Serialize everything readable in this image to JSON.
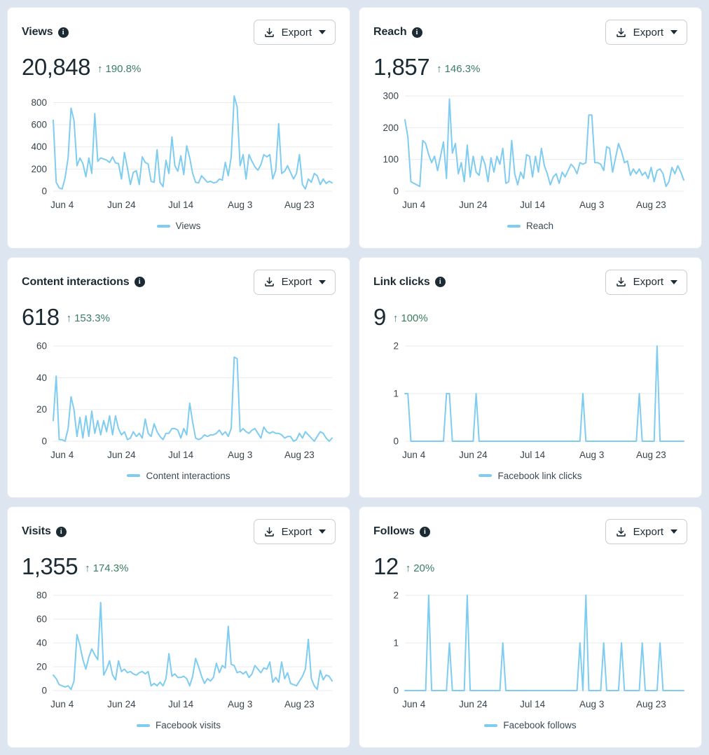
{
  "export": {
    "label": "Export"
  },
  "icons": {
    "info_glyph": "i",
    "up_arrow_glyph": "↑"
  },
  "colors": {
    "page_bg": "#dde5f1",
    "card_bg": "#ffffff",
    "line": "#7fccf1",
    "grid": "#e7e9ec",
    "title_text": "#1c2b33",
    "value_text": "#1c2b33",
    "delta_green": "#3a7d62",
    "axis_text": "#39444d",
    "legend_text": "#3c4a54"
  },
  "cards": [
    {
      "title": "Views",
      "value": "20,848",
      "delta": "190.8%",
      "delta_arrow": "↑",
      "legend": "Views"
    },
    {
      "title": "Reach",
      "value": "1,857",
      "delta": "146.3%",
      "delta_arrow": "↑",
      "legend": "Reach"
    },
    {
      "title": "Content interactions",
      "value": "618",
      "delta": "153.3%",
      "delta_arrow": "↑",
      "legend": "Content interactions"
    },
    {
      "title": "Link clicks",
      "value": "9",
      "delta": "100%",
      "delta_arrow": "↑",
      "legend": "Facebook link clicks"
    },
    {
      "title": "Visits",
      "value": "1,355",
      "delta": "174.3%",
      "delta_arrow": "↑",
      "legend": "Facebook visits"
    },
    {
      "title": "Follows",
      "value": "12",
      "delta": "20%",
      "delta_arrow": "↑",
      "legend": "Facebook follows"
    }
  ],
  "chart_data": [
    {
      "type": "line",
      "title": "Views",
      "xlabel": "",
      "ylabel": "",
      "grid": "horizontal",
      "legend_position": "bottom",
      "x_tick_labels": [
        "Jun 4",
        "Jun 24",
        "Jul 14",
        "Aug 3",
        "Aug 23"
      ],
      "x_tick_idx": [
        3,
        23,
        43,
        63,
        83
      ],
      "y_ticks": [
        0,
        200,
        400,
        600,
        800
      ],
      "ylim": [
        0,
        860
      ],
      "series": [
        {
          "name": "Views",
          "values": [
            640,
            80,
            30,
            20,
            120,
            300,
            750,
            640,
            230,
            300,
            250,
            130,
            300,
            160,
            700,
            270,
            300,
            290,
            280,
            260,
            310,
            255,
            250,
            110,
            350,
            210,
            60,
            170,
            185,
            60,
            310,
            260,
            245,
            90,
            80,
            375,
            80,
            40,
            280,
            160,
            490,
            230,
            180,
            320,
            150,
            410,
            300,
            160,
            80,
            75,
            140,
            110,
            80,
            90,
            75,
            80,
            110,
            100,
            260,
            140,
            310,
            860,
            760,
            230,
            330,
            110,
            330,
            270,
            220,
            190,
            240,
            330,
            310,
            330,
            110,
            190,
            610,
            160,
            180,
            230,
            170,
            110,
            160,
            330,
            60,
            20,
            110,
            80,
            160,
            140,
            60,
            110,
            70,
            90,
            75
          ]
        }
      ]
    },
    {
      "type": "line",
      "title": "Reach",
      "xlabel": "",
      "ylabel": "",
      "grid": "horizontal",
      "legend_position": "bottom",
      "x_tick_labels": [
        "Jun 4",
        "Jun 24",
        "Jul 14",
        "Aug 3",
        "Aug 23"
      ],
      "x_tick_idx": [
        3,
        23,
        43,
        63,
        83
      ],
      "y_ticks": [
        0,
        100,
        200,
        300
      ],
      "ylim": [
        0,
        300
      ],
      "series": [
        {
          "name": "Reach",
          "values": [
            225,
            170,
            30,
            25,
            20,
            15,
            160,
            150,
            115,
            90,
            110,
            65,
            110,
            155,
            40,
            290,
            120,
            150,
            55,
            90,
            30,
            145,
            45,
            110,
            60,
            50,
            110,
            85,
            30,
            105,
            60,
            110,
            85,
            135,
            25,
            30,
            160,
            55,
            20,
            60,
            40,
            115,
            110,
            45,
            110,
            60,
            135,
            80,
            55,
            20,
            45,
            55,
            25,
            60,
            45,
            65,
            85,
            75,
            55,
            90,
            85,
            90,
            240,
            240,
            90,
            90,
            85,
            65,
            140,
            135,
            60,
            105,
            150,
            125,
            90,
            95,
            50,
            70,
            55,
            70,
            50,
            60,
            40,
            75,
            30,
            65,
            70,
            55,
            15,
            30,
            75,
            55,
            80,
            60,
            35
          ]
        }
      ]
    },
    {
      "type": "line",
      "title": "Content interactions",
      "xlabel": "",
      "ylabel": "",
      "grid": "horizontal",
      "legend_position": "bottom",
      "x_tick_labels": [
        "Jun 4",
        "Jun 24",
        "Jul 14",
        "Aug 3",
        "Aug 23"
      ],
      "x_tick_idx": [
        3,
        23,
        43,
        63,
        83
      ],
      "y_ticks": [
        0,
        20,
        40,
        60
      ],
      "ylim": [
        0,
        60
      ],
      "series": [
        {
          "name": "Content interactions",
          "values": [
            13,
            41,
            1,
            1,
            0,
            8,
            28,
            20,
            3,
            15,
            2,
            16,
            3,
            19,
            5,
            13,
            4,
            13,
            6,
            16,
            4,
            16,
            8,
            4,
            6,
            1,
            2,
            6,
            3,
            5,
            2,
            14,
            5,
            3,
            11,
            6,
            3,
            1,
            5,
            5,
            8,
            8,
            7,
            2,
            8,
            4,
            24,
            12,
            2,
            1,
            2,
            4,
            3,
            4,
            4,
            5,
            7,
            4,
            6,
            3,
            8,
            53,
            52,
            6,
            8,
            6,
            5,
            7,
            8,
            5,
            2,
            9,
            6,
            5,
            6,
            5,
            5,
            4,
            2,
            3,
            3,
            0,
            1,
            5,
            2,
            6,
            4,
            2,
            0,
            3,
            6,
            5,
            2,
            0,
            2
          ]
        }
      ]
    },
    {
      "type": "line",
      "title": "Link clicks",
      "xlabel": "",
      "ylabel": "",
      "grid": "horizontal",
      "legend_position": "bottom",
      "x_tick_labels": [
        "Jun 4",
        "Jun 24",
        "Jul 14",
        "Aug 3",
        "Aug 23"
      ],
      "x_tick_idx": [
        3,
        23,
        43,
        63,
        83
      ],
      "y_ticks": [
        0,
        1,
        2
      ],
      "ylim": [
        0,
        2
      ],
      "series": [
        {
          "name": "Facebook link clicks",
          "values": [
            1,
            1,
            0,
            0,
            0,
            0,
            0,
            0,
            0,
            0,
            0,
            0,
            0,
            0,
            1,
            1,
            0,
            0,
            0,
            0,
            0,
            0,
            0,
            0,
            1,
            0,
            0,
            0,
            0,
            0,
            0,
            0,
            0,
            0,
            0,
            0,
            0,
            0,
            0,
            0,
            0,
            0,
            0,
            0,
            0,
            0,
            0,
            0,
            0,
            0,
            0,
            0,
            0,
            0,
            0,
            0,
            0,
            0,
            0,
            0,
            1,
            0,
            0,
            0,
            0,
            0,
            0,
            0,
            0,
            0,
            0,
            0,
            0,
            0,
            0,
            0,
            0,
            0,
            0,
            1,
            0,
            0,
            0,
            0,
            0,
            2,
            0,
            0,
            0,
            0,
            0,
            0,
            0,
            0,
            0
          ]
        }
      ]
    },
    {
      "type": "line",
      "title": "Visits",
      "xlabel": "",
      "ylabel": "",
      "grid": "horizontal",
      "legend_position": "bottom",
      "x_tick_labels": [
        "Jun 4",
        "Jun 24",
        "Jul 14",
        "Aug 3",
        "Aug 23"
      ],
      "x_tick_idx": [
        3,
        23,
        43,
        63,
        83
      ],
      "y_ticks": [
        0,
        20,
        40,
        60,
        80
      ],
      "ylim": [
        0,
        80
      ],
      "series": [
        {
          "name": "Facebook visits",
          "values": [
            13,
            10,
            5,
            4,
            3,
            4,
            1,
            8,
            47,
            38,
            26,
            18,
            28,
            35,
            30,
            26,
            74,
            13,
            18,
            25,
            13,
            9,
            25,
            16,
            18,
            15,
            16,
            14,
            13,
            15,
            16,
            14,
            16,
            4,
            6,
            4,
            7,
            4,
            10,
            31,
            12,
            14,
            11,
            11,
            12,
            10,
            4,
            12,
            27,
            20,
            12,
            6,
            10,
            8,
            11,
            23,
            15,
            21,
            19,
            54,
            22,
            21,
            15,
            16,
            14,
            16,
            11,
            14,
            21,
            18,
            15,
            19,
            18,
            24,
            7,
            11,
            7,
            24,
            10,
            15,
            6,
            5,
            4,
            8,
            12,
            18,
            43,
            10,
            4,
            1,
            17,
            9,
            13,
            12,
            8
          ]
        }
      ]
    },
    {
      "type": "line",
      "title": "Follows",
      "xlabel": "",
      "ylabel": "",
      "grid": "horizontal",
      "legend_position": "bottom",
      "x_tick_labels": [
        "Jun 4",
        "Jun 24",
        "Jul 14",
        "Aug 3",
        "Aug 23"
      ],
      "x_tick_idx": [
        3,
        23,
        43,
        63,
        83
      ],
      "y_ticks": [
        0,
        1,
        2
      ],
      "ylim": [
        0,
        2
      ],
      "series": [
        {
          "name": "Facebook follows",
          "values": [
            0,
            0,
            0,
            0,
            0,
            0,
            0,
            0,
            2,
            0,
            0,
            0,
            0,
            0,
            0,
            1,
            0,
            0,
            0,
            0,
            0,
            2,
            0,
            0,
            0,
            0,
            0,
            0,
            0,
            0,
            0,
            0,
            0,
            1,
            0,
            0,
            0,
            0,
            0,
            0,
            0,
            0,
            0,
            0,
            0,
            0,
            0,
            0,
            0,
            0,
            0,
            0,
            0,
            0,
            0,
            0,
            0,
            0,
            0,
            1,
            0,
            2,
            0,
            0,
            0,
            0,
            0,
            1,
            0,
            0,
            0,
            0,
            0,
            1,
            0,
            0,
            0,
            0,
            0,
            0,
            1,
            0,
            0,
            0,
            0,
            0,
            1,
            0,
            0,
            0,
            0,
            0,
            0,
            0,
            0
          ]
        }
      ]
    }
  ]
}
